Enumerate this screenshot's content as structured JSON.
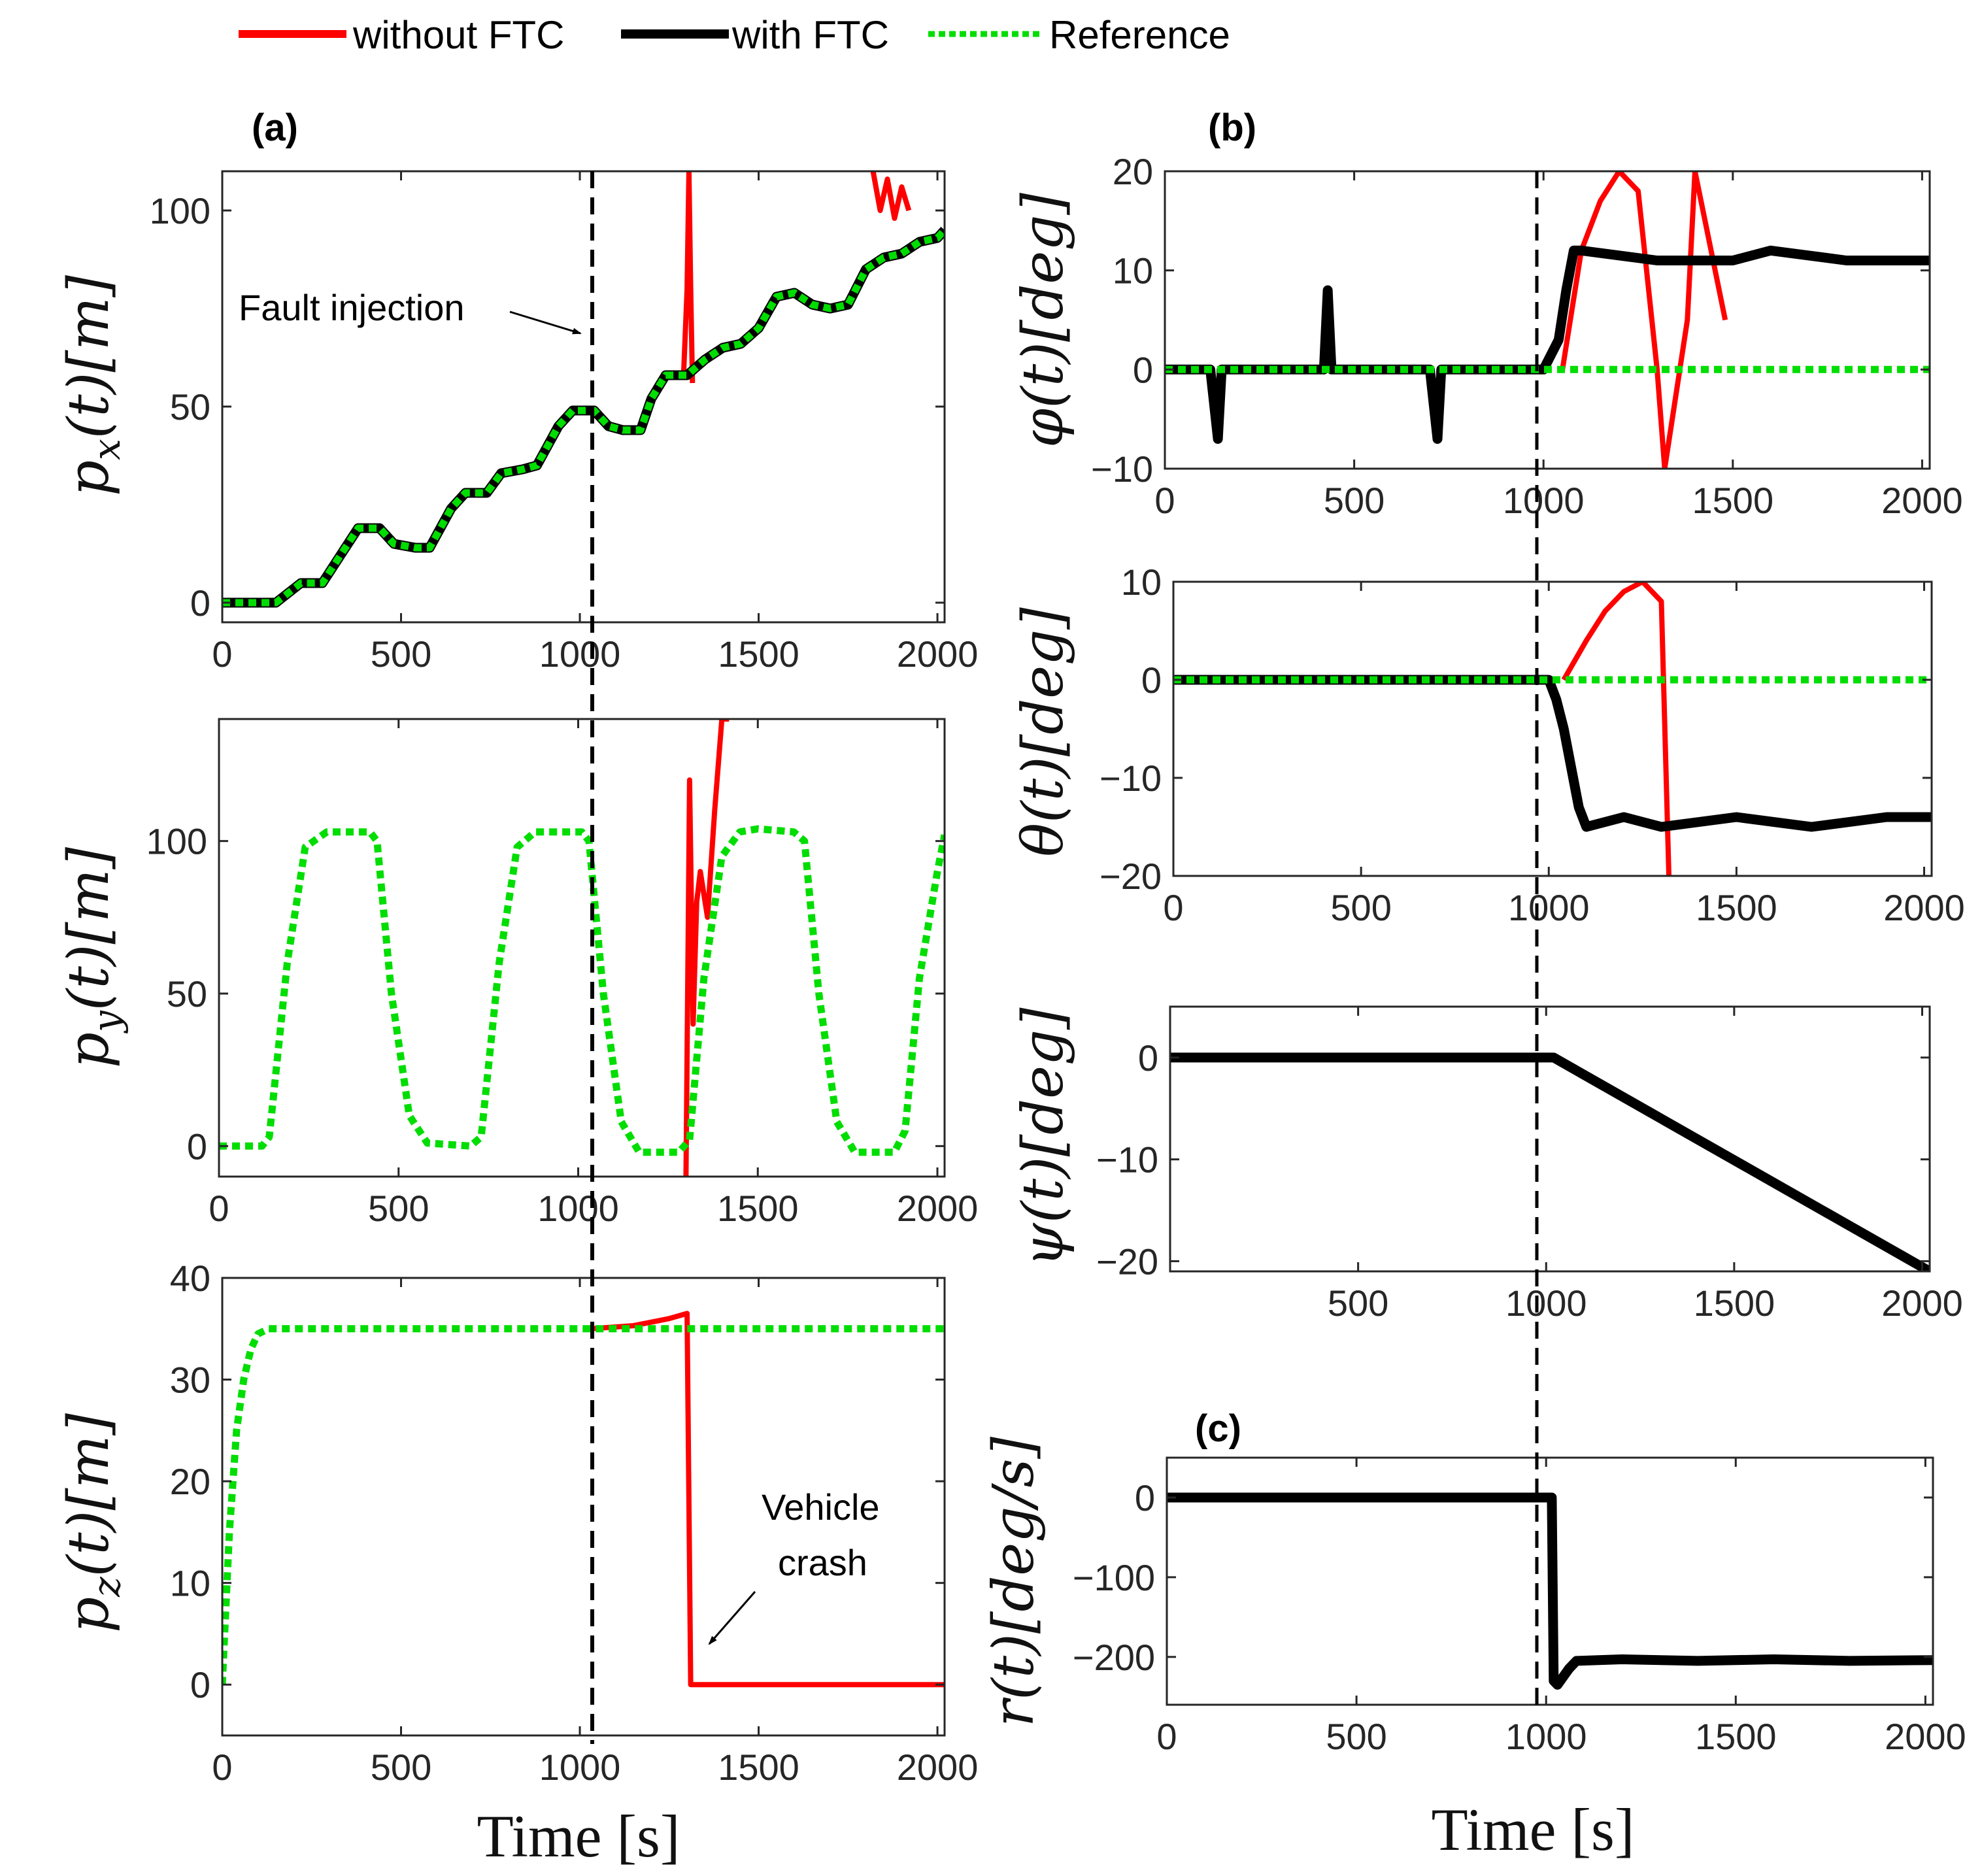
{
  "legend": [
    {
      "label": "without FTC",
      "color": "#ff0000",
      "style": "solid"
    },
    {
      "label": "with FTC",
      "color": "#000000",
      "style": "solid"
    },
    {
      "label": "Reference",
      "color": "#00dd00",
      "style": "dotted"
    }
  ],
  "panel_labels": {
    "a": "(a)",
    "b": "(b)",
    "c": "(c)"
  },
  "xlabel_left": "Time [s]",
  "xlabel_right": "Time [s]",
  "annotations": {
    "fault": "Fault injection",
    "crash_line1": "Vehicle",
    "crash_line2": "crash"
  },
  "colors": {
    "without": "#ff0000",
    "with": "#000000",
    "reference": "#00dd00"
  },
  "chart_data": [
    {
      "id": "px",
      "type": "line",
      "ylabel": "p_x(t) [m]",
      "xlim": [
        0,
        2020
      ],
      "ylim": [
        -5,
        110
      ],
      "xticks": [
        0,
        500,
        1000,
        1500,
        2000
      ],
      "yticks": [
        0,
        50,
        100
      ],
      "fault_time": 1030,
      "series": [
        {
          "name": "Reference",
          "x": [
            0,
            150,
            220,
            280,
            330,
            380,
            440,
            480,
            540,
            580,
            640,
            680,
            740,
            780,
            840,
            880,
            940,
            980,
            1040,
            1080,
            1120,
            1170,
            1200,
            1240,
            1300,
            1350,
            1400,
            1450,
            1500,
            1550,
            1600,
            1650,
            1700,
            1750,
            1800,
            1850,
            1900,
            1950,
            2000,
            2020
          ],
          "y": [
            0,
            0,
            5,
            5,
            12,
            19,
            19,
            15,
            14,
            14,
            24,
            28,
            28,
            33,
            34,
            35,
            45,
            49,
            49,
            45,
            44,
            44,
            52,
            58,
            58,
            62,
            65,
            66,
            70,
            78,
            79,
            76,
            75,
            76,
            85,
            88,
            89,
            92,
            93,
            95
          ]
        },
        {
          "name": "with FTC",
          "x": [
            0,
            150,
            220,
            280,
            330,
            380,
            440,
            480,
            540,
            580,
            640,
            680,
            740,
            780,
            840,
            880,
            940,
            980,
            1040,
            1080,
            1120,
            1170,
            1200,
            1240,
            1300,
            1350,
            1400,
            1450,
            1500,
            1550,
            1600,
            1650,
            1700,
            1750,
            1800,
            1850,
            1900,
            1950,
            2000,
            2020
          ],
          "y": [
            0,
            0,
            5,
            5,
            12,
            19,
            19,
            15,
            14,
            14,
            24,
            28,
            28,
            33,
            34,
            35,
            45,
            49,
            49,
            45,
            44,
            44,
            52,
            58,
            58,
            62,
            65,
            66,
            70,
            78,
            79,
            76,
            75,
            76,
            85,
            88,
            89,
            92,
            93,
            95
          ]
        },
        {
          "name": "without FTC",
          "x": [
            1290,
            1300,
            1305,
            1310,
            1315
          ],
          "y": [
            58,
            80,
            110,
            80,
            56
          ]
        },
        {
          "name": "without FTC",
          "x": [
            1820,
            1840,
            1860,
            1880,
            1900,
            1920
          ],
          "y": [
            110,
            100,
            108,
            98,
            106,
            100
          ]
        }
      ]
    },
    {
      "id": "py",
      "type": "line",
      "ylabel": "p_y(t) [m]",
      "xlim": [
        0,
        2020
      ],
      "ylim": [
        -10,
        140
      ],
      "xticks": [
        0,
        500,
        1000,
        1500,
        2000
      ],
      "yticks": [
        0,
        50,
        100
      ],
      "fault_time": 1030,
      "series": [
        {
          "name": "Reference",
          "x": [
            0,
            120,
            140,
            190,
            240,
            300,
            420,
            440,
            480,
            530,
            580,
            700,
            730,
            780,
            830,
            880,
            1010,
            1030,
            1070,
            1120,
            1170,
            1280,
            1310,
            1350,
            1400,
            1450,
            1500,
            1600,
            1630,
            1670,
            1720,
            1770,
            1880,
            1910,
            1950,
            2000,
            2020
          ],
          "y": [
            0,
            0,
            3,
            60,
            98,
            103,
            103,
            100,
            50,
            10,
            1,
            0,
            3,
            60,
            98,
            103,
            103,
            100,
            50,
            8,
            -2,
            -2,
            2,
            55,
            95,
            103,
            104,
            103,
            100,
            50,
            8,
            -2,
            -2,
            5,
            55,
            90,
            102
          ]
        },
        {
          "name": "without FTC",
          "x": [
            1300,
            1310,
            1320,
            1330,
            1340,
            1360,
            1380,
            1400,
            1420
          ],
          "y": [
            -10,
            120,
            40,
            80,
            90,
            75,
            110,
            140,
            140
          ]
        }
      ]
    },
    {
      "id": "pz",
      "type": "line",
      "ylabel": "p_z(t) [m]",
      "xlim": [
        0,
        2020
      ],
      "ylim": [
        -5,
        40
      ],
      "xticks": [
        0,
        500,
        1000,
        1500,
        2000
      ],
      "yticks": [
        0,
        10,
        20,
        30,
        40
      ],
      "fault_time": 1030,
      "series": [
        {
          "name": "Reference",
          "x": [
            0,
            20,
            40,
            60,
            80,
            100,
            130,
            160,
            2020
          ],
          "y": [
            0,
            15,
            25,
            30,
            33,
            34.5,
            35,
            35,
            35
          ]
        },
        {
          "name": "without FTC",
          "x": [
            1030,
            1150,
            1250,
            1300,
            1310,
            1320,
            2020
          ],
          "y": [
            35,
            35.3,
            36,
            36.5,
            0,
            0,
            0
          ]
        }
      ],
      "xlabel": "Time [s]"
    },
    {
      "id": "phi",
      "type": "line",
      "ylabel": "φ(t) [deg]",
      "xlim": [
        0,
        2020
      ],
      "ylim": [
        -10,
        20
      ],
      "xticks": [
        0,
        500,
        1000,
        1500,
        2000
      ],
      "yticks": [
        -10,
        0,
        10,
        20
      ],
      "fault_time": 1030,
      "series": [
        {
          "name": "Reference",
          "x": [
            0,
            2020
          ],
          "y": [
            0,
            0
          ]
        },
        {
          "name": "with FTC",
          "x": [
            0,
            120,
            140,
            150,
            420,
            430,
            440,
            700,
            720,
            730,
            1000,
            1040,
            1060,
            1080,
            1100,
            1300,
            1500,
            1600,
            1800,
            2000,
            2020
          ],
          "y": [
            0,
            0,
            -7,
            0,
            0,
            8,
            0,
            0,
            -7,
            0,
            0,
            3,
            8,
            12,
            12,
            11,
            11,
            12,
            11,
            11,
            11
          ]
        },
        {
          "name": "without FTC",
          "x": [
            1050,
            1100,
            1150,
            1200,
            1250,
            1300,
            1320,
            1380,
            1400,
            1480
          ],
          "y": [
            0,
            12,
            17,
            20,
            18,
            0,
            -10,
            5,
            20,
            5
          ]
        }
      ]
    },
    {
      "id": "theta",
      "type": "line",
      "ylabel": "θ(t) [deg]",
      "xlim": [
        0,
        2020
      ],
      "ylim": [
        -20,
        10
      ],
      "xticks": [
        0,
        500,
        1000,
        1500,
        2000
      ],
      "yticks": [
        -20,
        -10,
        0,
        10
      ],
      "fault_time": 1030,
      "series": [
        {
          "name": "Reference",
          "x": [
            0,
            2020
          ],
          "y": [
            0,
            0
          ]
        },
        {
          "name": "with FTC",
          "x": [
            0,
            1000,
            1020,
            1040,
            1060,
            1080,
            1100,
            1200,
            1300,
            1500,
            1700,
            1900,
            2020
          ],
          "y": [
            0,
            0,
            -2,
            -5,
            -9,
            -13,
            -15,
            -14,
            -15,
            -14,
            -15,
            -14,
            -14
          ]
        },
        {
          "name": "without FTC",
          "x": [
            1040,
            1100,
            1150,
            1200,
            1250,
            1300,
            1320
          ],
          "y": [
            0,
            4,
            7,
            9,
            10,
            8,
            -20
          ]
        }
      ]
    },
    {
      "id": "psi",
      "type": "line",
      "ylabel": "ψ(t) [deg]",
      "xlim": [
        0,
        2020
      ],
      "ylim": [
        -21,
        5
      ],
      "xticks": [
        500,
        1000,
        1500,
        2000
      ],
      "yticks": [
        -20,
        -10,
        0
      ],
      "fault_time": 1030,
      "series": [
        {
          "name": "with FTC",
          "x": [
            0,
            1020,
            2020
          ],
          "y": [
            0,
            0,
            -21
          ]
        }
      ]
    },
    {
      "id": "r",
      "type": "line",
      "ylabel": "r(t) [deg/s]",
      "xlim": [
        0,
        2020
      ],
      "ylim": [
        -260,
        50
      ],
      "xticks": [
        0,
        500,
        1000,
        1500,
        2000
      ],
      "yticks": [
        -200,
        -100,
        0
      ],
      "fault_time": 1030,
      "series": [
        {
          "name": "with FTC",
          "x": [
            0,
            1015,
            1020,
            1030,
            1060,
            1080,
            1200,
            1400,
            1600,
            1800,
            2020
          ],
          "y": [
            0,
            0,
            -230,
            -235,
            -215,
            -205,
            -203,
            -205,
            -203,
            -205,
            -204
          ]
        }
      ],
      "xlabel": "Time [s]"
    }
  ]
}
